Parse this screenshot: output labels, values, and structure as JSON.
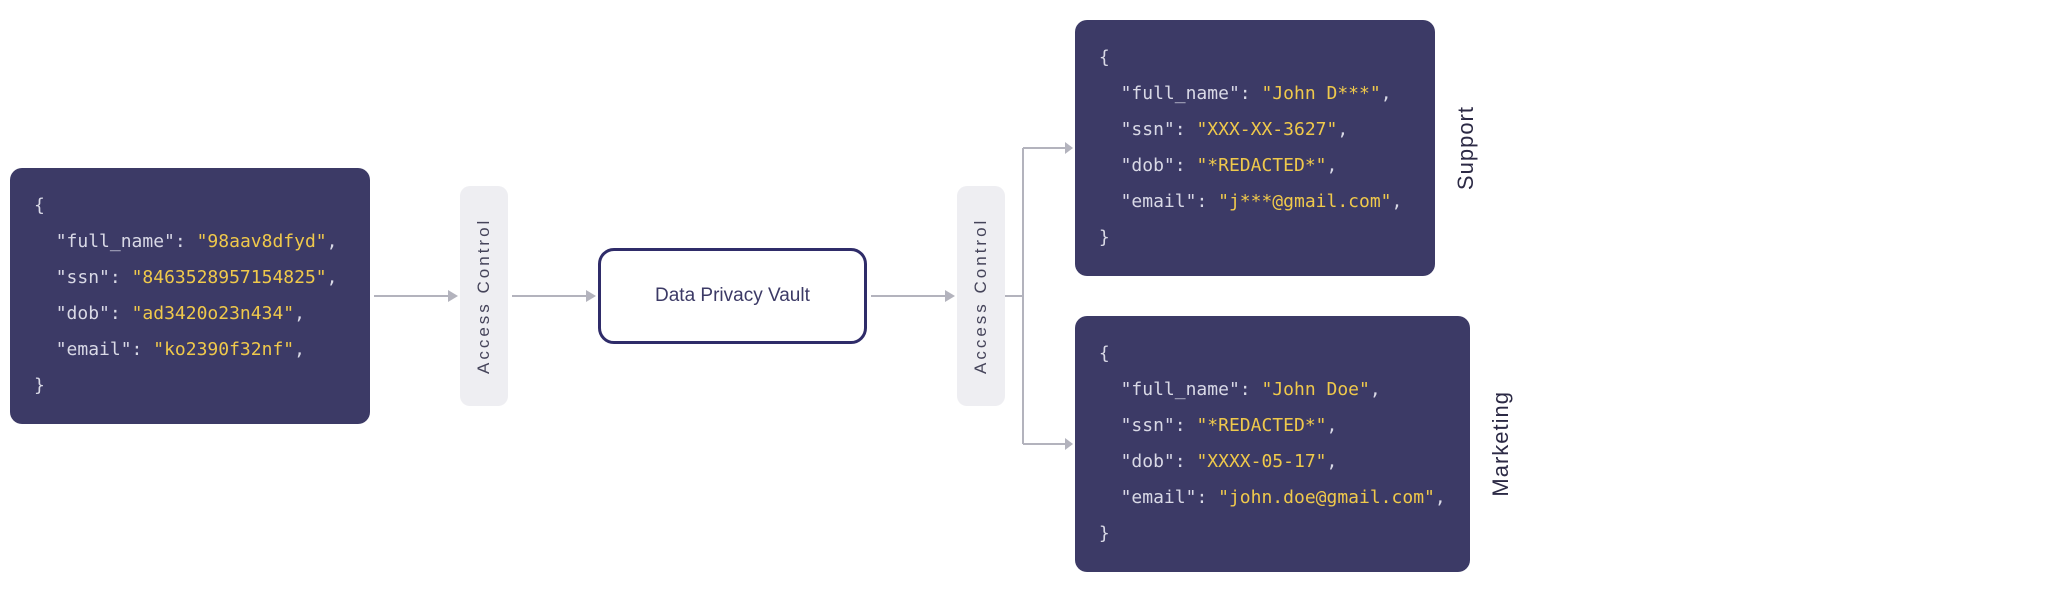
{
  "colors": {
    "code_bg": "#3c3a66",
    "code_key": "#d9d9e6",
    "code_value": "#f0c94b",
    "brace": "#d9d9e6",
    "access_bg": "#eeeef2",
    "access_text": "#45445a",
    "vault_border": "#2f2c69",
    "vault_text": "#3c3a66",
    "arrow": "#b3b3bd",
    "label_text": "#2c2a45"
  },
  "input_block": {
    "fields": [
      {
        "key": "full_name",
        "value": "98aav8dfyd"
      },
      {
        "key": "ssn",
        "value": "8463528957154825"
      },
      {
        "key": "dob",
        "value": "ad3420o23n434"
      },
      {
        "key": "email",
        "value": "ko2390f32nf"
      }
    ]
  },
  "access_control_label": "Access  Control",
  "vault_label": "Data Privacy Vault",
  "output_support": {
    "label": "Support",
    "fields": [
      {
        "key": "full_name",
        "value": "John D***"
      },
      {
        "key": "ssn",
        "value": "XXX-XX-3627"
      },
      {
        "key": "dob",
        "value": "*REDACTED*"
      },
      {
        "key": "email",
        "value": "j***@gmail.com"
      }
    ]
  },
  "output_marketing": {
    "label": "Marketing",
    "fields": [
      {
        "key": "full_name",
        "value": "John Doe"
      },
      {
        "key": "ssn",
        "value": "*REDACTED*"
      },
      {
        "key": "dob",
        "value": "XXXX-05-17"
      },
      {
        "key": "email",
        "value": "john.doe@gmail.com"
      }
    ]
  },
  "arrow_long_width": 90,
  "arrow_short_width": 70
}
